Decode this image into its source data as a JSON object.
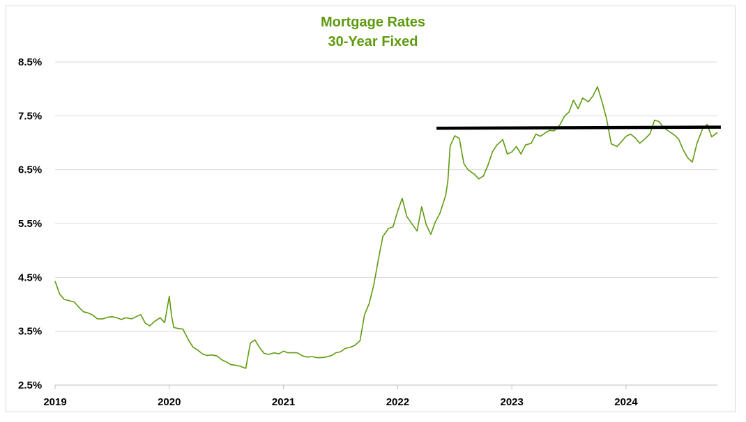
{
  "chart_data": {
    "type": "line",
    "title": "Mortgage Rates",
    "subtitle": "30-Year Fixed",
    "xlabel": "",
    "ylabel": "",
    "x_ticks": [
      "2019",
      "2020",
      "2021",
      "2022",
      "2023",
      "2024"
    ],
    "y_ticks": [
      "8.5%",
      "7.5%",
      "6.5%",
      "5.5%",
      "4.5%",
      "3.5%",
      "2.5%"
    ],
    "xlim": [
      2019.0,
      2024.8
    ],
    "ylim": [
      2.5,
      8.5
    ],
    "grid": true,
    "legend": "none",
    "colors": {
      "series": "#5e9a0e",
      "reference": "#000000",
      "title": "#5e9a0e"
    },
    "series": [
      {
        "x": [
          2019.0,
          2019.04,
          2019.08,
          2019.12,
          2019.17,
          2019.21,
          2019.25,
          2019.29,
          2019.33,
          2019.37,
          2019.42,
          2019.46,
          2019.5,
          2019.54,
          2019.58,
          2019.62,
          2019.67,
          2019.71,
          2019.75,
          2019.79,
          2019.83,
          2019.87,
          2019.92,
          2019.96,
          2020.0,
          2020.02,
          2020.04,
          2020.08,
          2020.12,
          2020.17,
          2020.21,
          2020.25,
          2020.29,
          2020.33,
          2020.37,
          2020.42,
          2020.46,
          2020.5,
          2020.54,
          2020.58,
          2020.62,
          2020.67,
          2020.71,
          2020.75,
          2020.79,
          2020.83,
          2020.87,
          2020.92,
          2020.96,
          2021.0,
          2021.04,
          2021.08,
          2021.12,
          2021.17,
          2021.21,
          2021.25,
          2021.29,
          2021.33,
          2021.37,
          2021.42,
          2021.46,
          2021.5,
          2021.54,
          2021.58,
          2021.62,
          2021.67,
          2021.71,
          2021.75,
          2021.79,
          2021.83,
          2021.87,
          2021.92,
          2021.96,
          2022.0,
          2022.04,
          2022.08,
          2022.12,
          2022.17,
          2022.21,
          2022.25,
          2022.29,
          2022.33,
          2022.37,
          2022.42,
          2022.44,
          2022.46,
          2022.5,
          2022.54,
          2022.58,
          2022.62,
          2022.67,
          2022.71,
          2022.75,
          2022.79,
          2022.83,
          2022.87,
          2022.92,
          2022.96,
          2023.0,
          2023.04,
          2023.08,
          2023.12,
          2023.17,
          2023.21,
          2023.25,
          2023.29,
          2023.33,
          2023.37,
          2023.42,
          2023.46,
          2023.5,
          2023.54,
          2023.58,
          2023.62,
          2023.67,
          2023.71,
          2023.75,
          2023.79,
          2023.83,
          2023.87,
          2023.92,
          2023.96,
          2024.0,
          2024.04,
          2024.08,
          2024.12,
          2024.17,
          2024.21,
          2024.25,
          2024.29,
          2024.33,
          2024.37,
          2024.42,
          2024.46,
          2024.5,
          2024.54,
          2024.58,
          2024.62,
          2024.67,
          2024.71,
          2024.75,
          2024.8
        ],
        "values": [
          4.43,
          4.19,
          4.09,
          4.07,
          4.04,
          3.94,
          3.86,
          3.84,
          3.8,
          3.73,
          3.73,
          3.76,
          3.77,
          3.75,
          3.72,
          3.75,
          3.73,
          3.77,
          3.81,
          3.65,
          3.6,
          3.68,
          3.75,
          3.66,
          4.15,
          3.78,
          3.57,
          3.55,
          3.54,
          3.33,
          3.2,
          3.15,
          3.08,
          3.05,
          3.06,
          3.04,
          2.97,
          2.93,
          2.88,
          2.87,
          2.85,
          2.81,
          3.28,
          3.34,
          3.2,
          3.09,
          3.07,
          3.1,
          3.08,
          3.13,
          3.1,
          3.1,
          3.1,
          3.04,
          3.02,
          3.03,
          3.01,
          3.01,
          3.02,
          3.05,
          3.1,
          3.12,
          3.18,
          3.2,
          3.23,
          3.32,
          3.81,
          4.01,
          4.35,
          4.82,
          5.26,
          5.41,
          5.44,
          5.73,
          5.97,
          5.63,
          5.51,
          5.36,
          5.81,
          5.48,
          5.3,
          5.53,
          5.69,
          6.02,
          6.29,
          6.94,
          7.13,
          7.08,
          6.61,
          6.49,
          6.42,
          6.33,
          6.38,
          6.58,
          6.83,
          6.96,
          7.06,
          6.79,
          6.83,
          6.93,
          6.79,
          6.96,
          6.99,
          7.16,
          7.12,
          7.18,
          7.23,
          7.22,
          7.33,
          7.49,
          7.57,
          7.79,
          7.63,
          7.83,
          7.76,
          7.87,
          8.04,
          7.76,
          7.44,
          6.98,
          6.93,
          7.02,
          7.12,
          7.16,
          7.09,
          6.99,
          7.08,
          7.17,
          7.42,
          7.39,
          7.28,
          7.22,
          7.15,
          7.07,
          6.87,
          6.72,
          6.64,
          6.98,
          7.26,
          7.34,
          7.11,
          7.19
        ],
        "mean_reference_level": 7.29
      }
    ],
    "reference_line": {
      "x": [
        2022.34,
        2024.83
      ],
      "y": [
        7.27,
        7.29
      ]
    }
  }
}
